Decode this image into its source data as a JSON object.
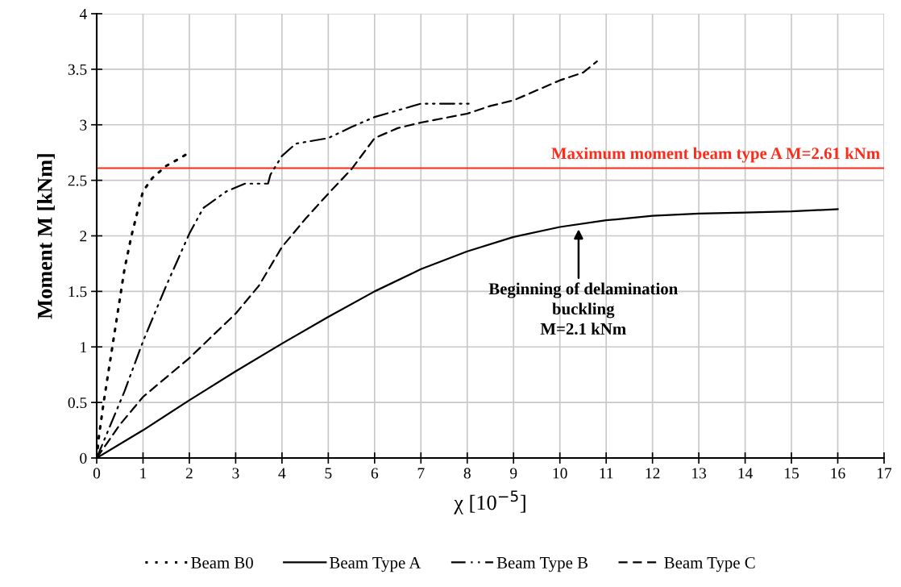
{
  "chart_data": {
    "type": "line",
    "xlabel": "χ [10$^{−5}$]",
    "ylabel": "Moment M [kNm]",
    "xlim": [
      0,
      17
    ],
    "ylim": [
      0,
      4
    ],
    "xticks": [
      0,
      1,
      2,
      3,
      4,
      5,
      6,
      7,
      8,
      9,
      10,
      11,
      12,
      13,
      14,
      15,
      16,
      17
    ],
    "yticks": [
      0,
      0.5,
      1,
      1.5,
      2,
      2.5,
      3,
      3.5,
      4
    ],
    "grid": true,
    "legend": "bottom",
    "marker": "none",
    "series": [
      {
        "name": "Beam B0",
        "color": "#000000",
        "line_style": "dotted",
        "x": [
          0,
          0.05,
          0.15,
          0.3,
          0.45,
          0.6,
          0.75,
          0.9,
          1.0,
          1.2,
          1.5,
          1.8,
          2.0
        ],
        "values": [
          0,
          0.2,
          0.5,
          0.9,
          1.3,
          1.7,
          2.0,
          2.25,
          2.4,
          2.52,
          2.63,
          2.7,
          2.75
        ]
      },
      {
        "name": "Beam Type A",
        "color": "#000000",
        "line_style": "solid",
        "x": [
          0,
          1,
          2,
          3,
          4,
          5,
          6,
          7,
          8,
          9,
          10,
          11,
          12,
          13,
          14,
          15,
          16
        ],
        "values": [
          0,
          0.25,
          0.52,
          0.78,
          1.03,
          1.27,
          1.5,
          1.7,
          1.86,
          1.99,
          2.08,
          2.14,
          2.18,
          2.2,
          2.21,
          2.22,
          2.24
        ]
      },
      {
        "name": "Beam Type B",
        "color": "#000000",
        "line_style": "dashdot",
        "x": [
          0,
          0.3,
          0.6,
          1,
          1.5,
          2,
          2.3,
          2.8,
          3.2,
          3.4,
          3.7,
          3.75,
          4,
          4.3,
          5,
          5.5,
          6,
          7,
          8.1
        ],
        "values": [
          0,
          0.3,
          0.6,
          1.05,
          1.55,
          2.02,
          2.25,
          2.4,
          2.47,
          2.47,
          2.47,
          2.55,
          2.72,
          2.83,
          2.88,
          2.98,
          3.07,
          3.19,
          3.19
        ]
      },
      {
        "name": "Beam Type C",
        "color": "#000000",
        "line_style": "dashed",
        "x": [
          0,
          0.5,
          1,
          2,
          3,
          3.5,
          4,
          4.5,
          5,
          5.5,
          6,
          6.5,
          7,
          8,
          8.5,
          9,
          10,
          10.5,
          10.8
        ],
        "values": [
          0,
          0.3,
          0.55,
          0.9,
          1.3,
          1.55,
          1.9,
          2.15,
          2.38,
          2.6,
          2.88,
          2.97,
          3.02,
          3.1,
          3.17,
          3.22,
          3.4,
          3.47,
          3.57
        ]
      }
    ],
    "ref_lines": [
      {
        "axis": "y",
        "value": 2.61,
        "label": "Maximum moment beam type A M=2.61 kNm",
        "color": "#ff2a1a"
      }
    ],
    "annotations": [
      "Beginning of delamination\nbuckling\nM=2.1 kNm"
    ]
  }
}
